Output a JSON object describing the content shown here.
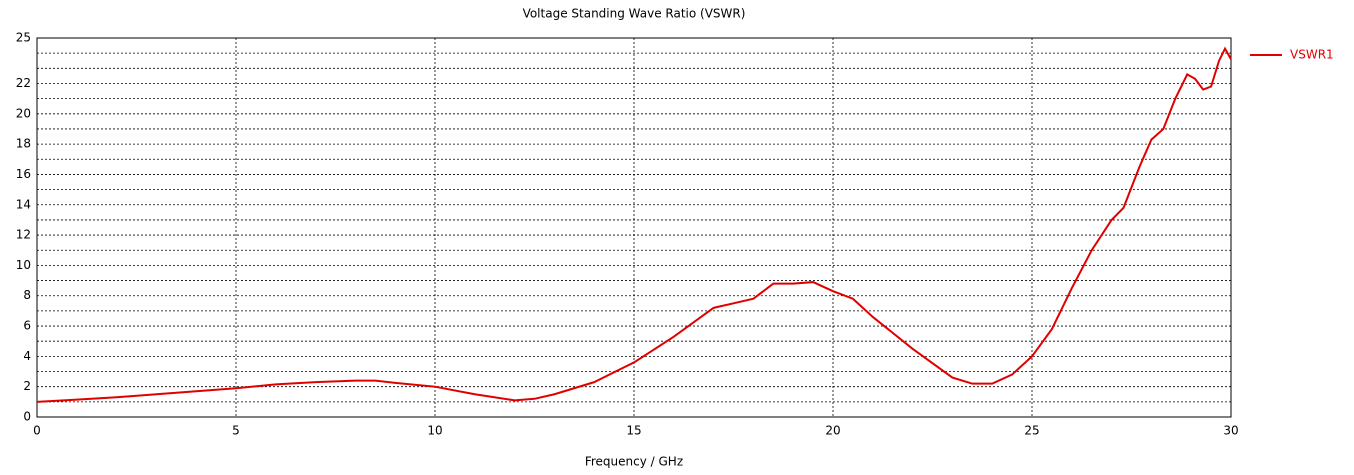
{
  "chart_data": {
    "type": "line",
    "title": "Voltage Standing Wave Ratio (VSWR)",
    "x_label": "Frequency / GHz",
    "xlim": [
      0,
      30
    ],
    "xticks": [
      0,
      5,
      10,
      15,
      20,
      25,
      30
    ],
    "ylim": [
      0,
      25
    ],
    "yticks": [
      0,
      2,
      4,
      6,
      8,
      10,
      12,
      14,
      16,
      18,
      20,
      22,
      25
    ],
    "yminorticks": [
      1,
      3,
      5,
      7,
      9,
      11,
      13,
      15,
      17,
      19,
      21,
      23,
      24
    ],
    "grid": true,
    "legend": "right",
    "x": [
      0,
      1,
      2,
      3,
      4,
      5,
      6,
      7,
      8,
      8.5,
      9,
      10,
      11,
      12,
      12.5,
      13,
      14,
      15,
      16,
      17,
      17.5,
      18,
      18.5,
      19,
      19.5,
      20,
      20.5,
      21,
      22,
      23,
      23.5,
      24,
      24.5,
      25,
      25.5,
      26,
      26.5,
      27,
      27.3,
      27.7,
      28,
      28.3,
      28.6,
      28.9,
      29.1,
      29.3,
      29.5,
      29.7,
      29.85,
      30
    ],
    "series": [
      {
        "name": "VSWR1",
        "color": "#e00000",
        "values": [
          1.0,
          1.15,
          1.3,
          1.5,
          1.7,
          1.9,
          2.15,
          2.3,
          2.4,
          2.4,
          2.25,
          2.0,
          1.5,
          1.1,
          1.2,
          1.5,
          2.3,
          3.6,
          5.3,
          7.2,
          7.5,
          7.8,
          8.8,
          8.8,
          8.9,
          8.3,
          7.8,
          6.6,
          4.5,
          2.6,
          2.2,
          2.2,
          2.8,
          4.0,
          5.8,
          8.5,
          11,
          13,
          13.8,
          16.5,
          18.3,
          19.0,
          21.0,
          22.6,
          22.3,
          21.6,
          21.8,
          23.5,
          24.3,
          23.6
        ]
      }
    ]
  }
}
